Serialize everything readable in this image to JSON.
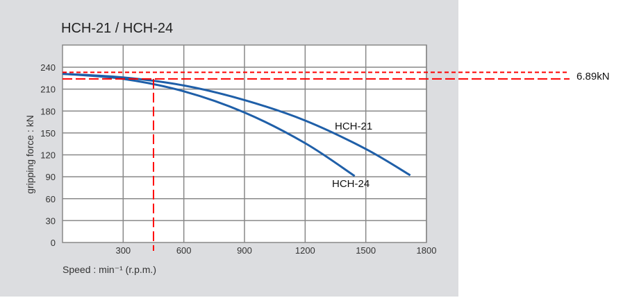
{
  "chart_data": {
    "type": "line",
    "title": "HCH-21 / HCH-24",
    "xlabel": "Speed : min⁻¹ (r.p.m.)",
    "ylabel": "gripping force : kN",
    "xlim": [
      0,
      1800
    ],
    "ylim": [
      0,
      240
    ],
    "xticks": [
      "300",
      "600",
      "900",
      "1200",
      "1500",
      "1800"
    ],
    "yticks": [
      "0",
      "30",
      "60",
      "90",
      "120",
      "150",
      "180",
      "210",
      "240"
    ],
    "grid": true,
    "series": [
      {
        "name": "HCH-21",
        "color": "#1f5fa8",
        "x": [
          0,
          300,
          600,
          900,
          1200,
          1500,
          1720
        ],
        "y": [
          231,
          226,
          215,
          195,
          167,
          128,
          92
        ]
      },
      {
        "name": "HCH-24",
        "color": "#1f5fa8",
        "x": [
          0,
          300,
          600,
          900,
          1200,
          1445
        ],
        "y": [
          231,
          224,
          207,
          178,
          136,
          91
        ]
      }
    ],
    "annotations": {
      "color": "#ff0000",
      "hlines_kN": [
        233,
        224
      ],
      "vline_rpm": 450,
      "label": "6.89kN"
    }
  }
}
